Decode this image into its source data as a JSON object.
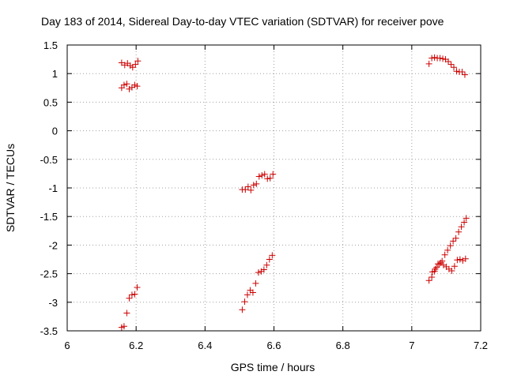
{
  "chart_data": {
    "type": "scatter",
    "title": "Day 183 of 2014, Sidereal Day-to-day VTEC variation (SDTVAR) for receiver pove",
    "xlabel": "GPS time / hours",
    "ylabel": "SDTVAR / TECUs",
    "xlim": [
      6,
      7.2
    ],
    "ylim": [
      -3.5,
      1.5
    ],
    "xticks": [
      6,
      6.2,
      6.4,
      6.6,
      6.8,
      7,
      7.2
    ],
    "xtick_labels": [
      "6",
      "6.2",
      "6.4",
      "6.6",
      "6.8",
      "7",
      "7.2"
    ],
    "yticks": [
      1.5,
      1,
      0.5,
      0,
      -0.5,
      -1,
      -1.5,
      -2,
      -2.5,
      -3,
      -3.5
    ],
    "ytick_labels": [
      "1.5",
      "1",
      "0.5",
      "0",
      "-0.5",
      "-1",
      "-1.5",
      "-2",
      "-2.5",
      "-3",
      "-3.5"
    ],
    "grid": true,
    "marker": "+",
    "marker_color": "#cc0000",
    "grid_color": "#a0a0a0",
    "series": [
      {
        "name": "sdtvar",
        "x": [
          6.158,
          6.167,
          6.175,
          6.183,
          6.19,
          6.198,
          6.205,
          6.158,
          6.165,
          6.173,
          6.18,
          6.188,
          6.196,
          6.203,
          6.158,
          6.165,
          6.173,
          6.18,
          6.188,
          6.196,
          6.203,
          6.508,
          6.517,
          6.525,
          6.533,
          6.541,
          6.549,
          6.557,
          6.565,
          6.573,
          6.581,
          6.589,
          6.597,
          6.508,
          6.515,
          6.523,
          6.531,
          6.539,
          6.547,
          6.555,
          6.563,
          6.571,
          6.579,
          6.587,
          6.595,
          7.05,
          7.058,
          7.066,
          7.074,
          7.082,
          7.09,
          7.098,
          7.106,
          7.114,
          7.122,
          7.13,
          7.138,
          7.146,
          7.154,
          7.05,
          7.058,
          7.066,
          7.072,
          7.08,
          7.088,
          7.096,
          7.104,
          7.112,
          7.12,
          7.128,
          7.136,
          7.144,
          7.152,
          7.158,
          7.06,
          7.068,
          7.076,
          7.084,
          7.092,
          7.1,
          7.108,
          7.116,
          7.124,
          7.132,
          7.14,
          7.148,
          7.156
        ],
        "y": [
          1.19,
          1.15,
          1.18,
          1.14,
          1.11,
          1.16,
          1.22,
          0.75,
          0.8,
          0.82,
          0.73,
          0.76,
          0.8,
          0.78,
          -3.44,
          -3.42,
          -3.19,
          -2.93,
          -2.87,
          -2.86,
          -2.74,
          -1.03,
          -1.03,
          -0.98,
          -1.04,
          -0.95,
          -0.93,
          -0.8,
          -0.78,
          -0.76,
          -0.84,
          -0.83,
          -0.76,
          -3.13,
          -2.99,
          -2.87,
          -2.79,
          -2.83,
          -2.67,
          -2.48,
          -2.46,
          -2.43,
          -2.35,
          -2.25,
          -2.18,
          1.17,
          1.27,
          1.28,
          1.27,
          1.27,
          1.26,
          1.25,
          1.21,
          1.16,
          1.11,
          1.04,
          1.03,
          1.03,
          0.98,
          -2.62,
          -2.56,
          -2.46,
          -2.39,
          -2.33,
          -2.28,
          -2.17,
          -2.09,
          -2.01,
          -1.93,
          -1.88,
          -1.77,
          -1.68,
          -1.6,
          -1.53,
          -2.47,
          -2.42,
          -2.33,
          -2.31,
          -2.35,
          -2.38,
          -2.42,
          -2.45,
          -2.37,
          -2.26,
          -2.25,
          -2.27,
          -2.24
        ]
      }
    ]
  }
}
